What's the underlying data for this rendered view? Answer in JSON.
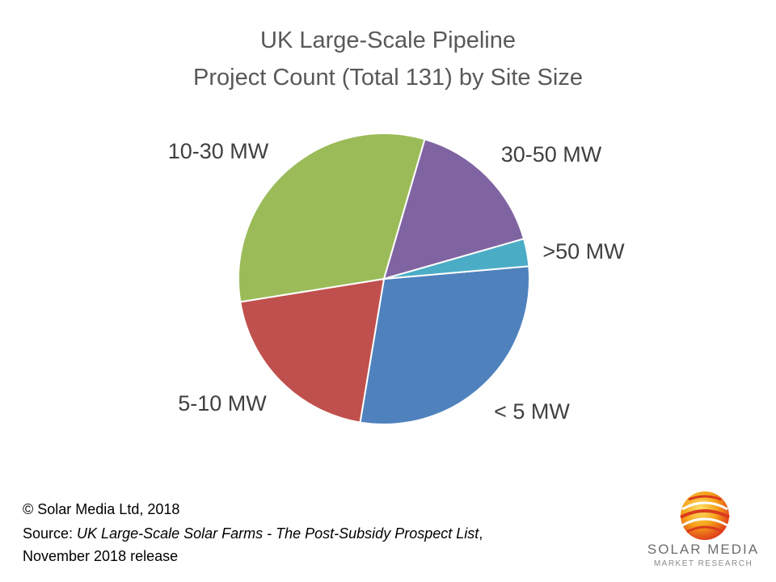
{
  "title_line_1": "UK Large-Scale Pipeline",
  "title_line_2": "Project Count (Total 131) by Site Size",
  "chart_data": {
    "type": "pie",
    "title": "UK Large-Scale Pipeline Project Count (Total 131) by Site Size",
    "total": 131,
    "slices": [
      {
        "label": "< 5 MW",
        "value": 38,
        "color": "#4f81bd"
      },
      {
        "label": "5-10 MW",
        "value": 26,
        "color": "#c0504d"
      },
      {
        "label": "10-30 MW",
        "value": 42,
        "color": "#9bbb59"
      },
      {
        "label": "30-50 MW",
        "value": 21,
        "color": "#8064a2"
      },
      {
        "label": ">50 MW",
        "value": 4,
        "color": "#4bacc6"
      }
    ],
    "legend": "none",
    "data_labels": "category names outside slices"
  },
  "footer": {
    "copyright": "© Solar Media Ltd, 2018",
    "source_prefix": "Source: ",
    "source_title": "UK Large-Scale Solar Farms - The Post-Subsidy Prospect List",
    "source_suffix": ",",
    "release": "November 2018 release"
  },
  "logo": {
    "name": "SOLAR MEDIA",
    "subtitle": "MARKET RESEARCH"
  }
}
